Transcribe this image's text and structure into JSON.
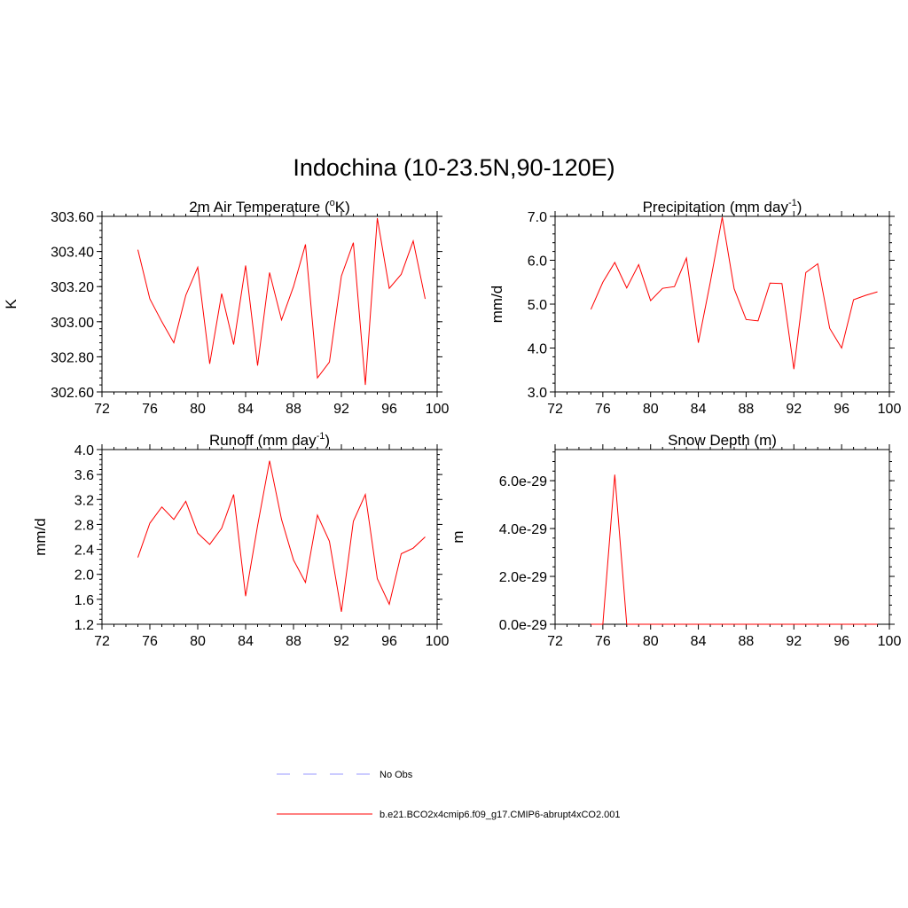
{
  "title": "Indochina (10-23.5N,90-120E)",
  "line_color": "#ff0000",
  "obs_color": "#9999ff",
  "legend": {
    "obs_label": "No Obs",
    "model_label": "b.e21.BCO2x4cmip6.f09_g17.CMIP6-abrupt4xCO2.001"
  },
  "chart_data": [
    {
      "type": "line",
      "title": "2m Air Temperature (",
      "title_sup": "o",
      "title_tail": "K)",
      "ylabel": "K",
      "xlim": [
        72,
        100
      ],
      "ylim": [
        302.6,
        303.6
      ],
      "xticks": [
        72,
        76,
        80,
        84,
        88,
        92,
        96,
        100
      ],
      "yticks": [
        "302.60",
        "302.80",
        "303.00",
        "303.20",
        "303.40",
        "303.60"
      ],
      "x": [
        75,
        76,
        77,
        78,
        79,
        80,
        81,
        82,
        83,
        84,
        85,
        86,
        87,
        88,
        89,
        90,
        91,
        92,
        93,
        94,
        95,
        96,
        97,
        98,
        99
      ],
      "values": [
        303.41,
        303.13,
        303.0,
        302.88,
        303.15,
        303.31,
        302.76,
        303.16,
        302.87,
        303.32,
        302.75,
        303.28,
        303.01,
        303.2,
        303.44,
        302.68,
        302.77,
        303.26,
        303.45,
        302.64,
        303.59,
        303.19,
        303.27,
        303.46,
        303.13
      ]
    },
    {
      "type": "line",
      "title": "Precipitation (mm day",
      "title_sup": "-1",
      "title_tail": ")",
      "ylabel": "mm/d",
      "xlim": [
        72,
        100
      ],
      "ylim": [
        3.0,
        7.0
      ],
      "xticks": [
        72,
        76,
        80,
        84,
        88,
        92,
        96,
        100
      ],
      "yticks": [
        "3.0",
        "4.0",
        "5.0",
        "6.0",
        "7.0"
      ],
      "x": [
        75,
        76,
        77,
        78,
        79,
        80,
        81,
        82,
        83,
        84,
        85,
        86,
        87,
        88,
        89,
        90,
        91,
        92,
        93,
        94,
        95,
        96,
        97,
        98,
        99
      ],
      "values": [
        4.88,
        5.5,
        5.95,
        5.37,
        5.9,
        5.08,
        5.36,
        5.4,
        6.05,
        4.12,
        5.5,
        6.98,
        5.35,
        4.65,
        4.62,
        5.48,
        5.47,
        3.52,
        5.72,
        5.92,
        4.45,
        4.0,
        5.1,
        5.2,
        5.28
      ]
    },
    {
      "type": "line",
      "title": "Runoff (mm day",
      "title_sup": "-1",
      "title_tail": ")",
      "ylabel": "mm/d",
      "xlim": [
        72,
        100
      ],
      "ylim": [
        1.2,
        4.0
      ],
      "xticks": [
        72,
        76,
        80,
        84,
        88,
        92,
        96,
        100
      ],
      "yticks": [
        "1.2",
        "1.6",
        "2.0",
        "2.4",
        "2.8",
        "3.2",
        "3.6",
        "4.0"
      ],
      "x": [
        75,
        76,
        77,
        78,
        79,
        80,
        81,
        82,
        83,
        84,
        85,
        86,
        87,
        88,
        89,
        90,
        91,
        92,
        93,
        94,
        95,
        96,
        97,
        98,
        99
      ],
      "values": [
        2.27,
        2.82,
        3.08,
        2.88,
        3.17,
        2.66,
        2.48,
        2.74,
        3.28,
        1.65,
        2.78,
        3.82,
        2.88,
        2.23,
        1.87,
        2.95,
        2.53,
        1.4,
        2.85,
        3.28,
        1.93,
        1.52,
        2.33,
        2.42,
        2.6
      ]
    },
    {
      "type": "line",
      "title": "Snow Depth (m)",
      "title_sup": "",
      "title_tail": "",
      "ylabel": "m",
      "xlim": [
        72,
        100
      ],
      "ylim": [
        0,
        7.3e-29
      ],
      "xticks": [
        72,
        76,
        80,
        84,
        88,
        92,
        96,
        100
      ],
      "ytick_values": [
        0,
        2e-29,
        4e-29,
        6e-29
      ],
      "yticks": [
        "0.0e-29",
        "2.0e-29",
        "4.0e-29",
        "6.0e-29"
      ],
      "x": [
        75,
        76,
        77,
        78,
        79,
        80,
        81,
        82,
        83,
        84,
        85,
        86,
        87,
        88,
        89,
        90,
        91,
        92,
        93,
        94,
        95,
        96,
        97,
        98,
        99
      ],
      "values": [
        0,
        0,
        6.25e-29,
        0,
        0,
        0,
        0,
        0,
        0,
        0,
        0,
        0,
        0,
        0,
        0,
        0,
        0,
        0,
        0,
        0,
        0,
        0,
        0,
        0,
        0
      ]
    }
  ]
}
